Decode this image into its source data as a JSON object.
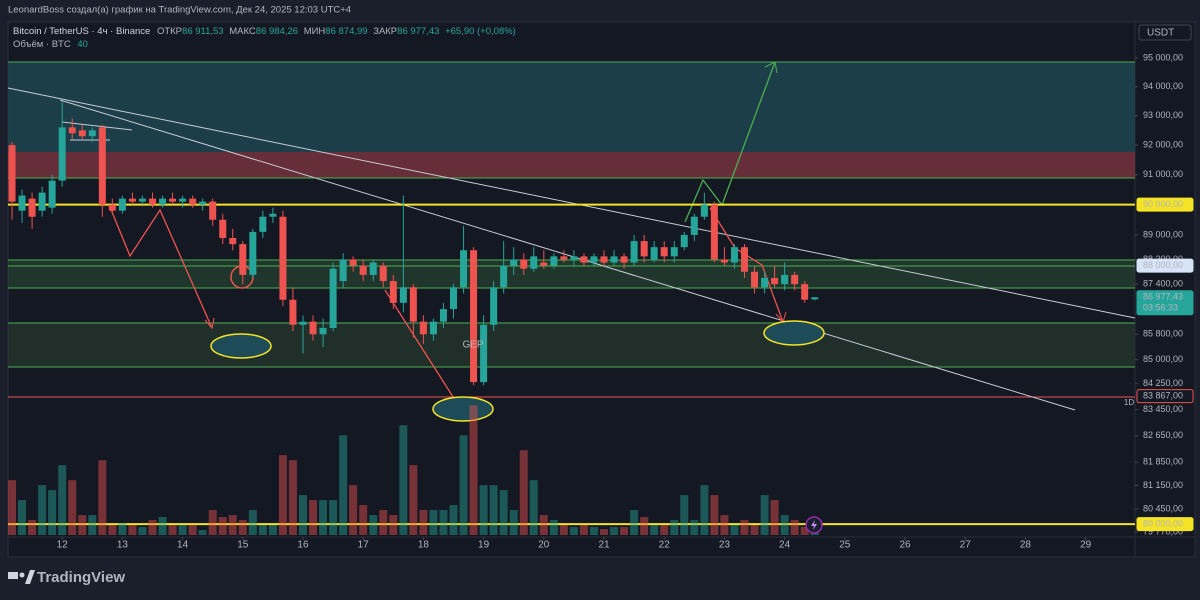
{
  "chart_data": {
    "type": "candlestick",
    "attribution": "LeonardBoss создал(а) график на TradingView.com, Дек 24, 2025 12:03 UTC+4",
    "title": "Bitcoin / TetherUS · 4ч · Binance",
    "ohlc_labels": [
      "ОТКР",
      "МАКС",
      "МИН",
      "ЗАКР"
    ],
    "ohlc_printed": [
      "86 911,53",
      "86 984,26",
      "86 874,99",
      "86 977,43"
    ],
    "change": "+65,90 (+0,08%)",
    "volume_label": "Объём · BTC",
    "volume_length": 40,
    "currency": "USDT",
    "annotations": [
      "GEP",
      "1D"
    ],
    "brand": "TradingView",
    "log": true,
    "up_color": "#26a69a",
    "down_color": "#ef5350",
    "xlim": [
      11.1,
      29.82
    ],
    "xticks": [
      12,
      13,
      14,
      15,
      16,
      17,
      18,
      19,
      20,
      21,
      22,
      23,
      24,
      25,
      26,
      27,
      28,
      29
    ],
    "ylim": [
      79680,
      95280
    ],
    "yticks": [
      {
        "value": 95000,
        "label": "95 000,00"
      },
      {
        "value": 94000,
        "label": "94 000,00"
      },
      {
        "value": 93000,
        "label": "93 000,00"
      },
      {
        "value": 92000,
        "label": "92 000,00"
      },
      {
        "value": 91000,
        "label": "91 000,00"
      },
      {
        "value": 89000,
        "label": "89 000,00"
      },
      {
        "value": 88200,
        "label": "88 200,00"
      },
      {
        "value": 87400,
        "label": "87 400,00"
      },
      {
        "value": 85800,
        "label": "85 800,00"
      },
      {
        "value": 85000,
        "label": "85 000,00"
      },
      {
        "value": 84250,
        "label": "84 250,00"
      },
      {
        "value": 83450,
        "label": "83 450,00"
      },
      {
        "value": 82650,
        "label": "82 650,00"
      },
      {
        "value": 81850,
        "label": "81 850,00"
      },
      {
        "value": 81150,
        "label": "81 150,00"
      },
      {
        "value": 80450,
        "label": "80 450,00"
      },
      {
        "value": 79770,
        "label": "79 770,00"
      }
    ],
    "price_markers": [
      {
        "value": 90000,
        "label": "90 000,00",
        "color": "#f5e326"
      },
      {
        "value": 88000,
        "label": "88 000,00",
        "color": "#d6e4f5"
      },
      {
        "value": 83867,
        "label": "83 867,00",
        "color": "#ef5350"
      },
      {
        "value": 80000,
        "label": "80 000,00",
        "color": "#f5e326"
      },
      {
        "value": 86977.43,
        "label": "86 977,43",
        "countdown": "03:56:33",
        "color": "#26a69a"
      }
    ],
    "vlim": [
      0,
      4000
    ],
    "x": [
      11.167,
      11.333,
      11.5,
      11.667,
      11.833,
      12,
      12.167,
      12.333,
      12.5,
      12.667,
      12.833,
      13,
      13.167,
      13.333,
      13.5,
      13.667,
      13.833,
      14,
      14.167,
      14.333,
      14.5,
      14.667,
      14.833,
      15,
      15.167,
      15.333,
      15.5,
      15.667,
      15.833,
      16,
      16.167,
      16.333,
      16.5,
      16.667,
      16.833,
      17,
      17.167,
      17.333,
      17.5,
      17.667,
      17.833,
      18,
      18.167,
      18.333,
      18.5,
      18.667,
      18.833,
      19,
      19.167,
      19.333,
      19.5,
      19.667,
      19.833,
      20,
      20.167,
      20.333,
      20.5,
      20.667,
      20.833,
      21,
      21.167,
      21.333,
      21.5,
      21.667,
      21.833,
      22,
      22.167,
      22.333,
      22.5,
      22.667,
      22.833,
      23,
      23.167,
      23.333,
      23.5,
      23.667,
      23.833,
      24,
      24.167,
      24.333,
      24.5
    ],
    "open": [
      92000,
      89800,
      90200,
      89800,
      89900,
      90800,
      92600,
      92500,
      92300,
      92600,
      90000,
      89800,
      90200,
      90100,
      90200,
      90000,
      90200,
      90100,
      90200,
      90000,
      90100,
      89500,
      88900,
      88700,
      87700,
      89100,
      89600,
      89600,
      86900,
      86100,
      86200,
      85800,
      86000,
      87500,
      88200,
      88000,
      87700,
      88000,
      87500,
      86800,
      87300,
      86200,
      85800,
      86200,
      86600,
      87300,
      88500,
      84300,
      86100,
      87300,
      88000,
      88200,
      87900,
      88100,
      88000,
      88300,
      88200,
      88300,
      88100,
      88300,
      88100,
      88300,
      88100,
      88800,
      88200,
      88600,
      88300,
      88600,
      89000,
      89600,
      90000,
      88200,
      88100,
      88600,
      87800,
      87300,
      87600,
      87400,
      87700,
      87400,
      86911.53
    ],
    "high": [
      92100,
      90500,
      90400,
      90600,
      91000,
      93500,
      92900,
      92700,
      92600,
      92700,
      90200,
      90300,
      90400,
      90300,
      90400,
      90300,
      90400,
      90300,
      90300,
      90200,
      90200,
      89700,
      89200,
      88800,
      89200,
      89800,
      89900,
      89800,
      87300,
      86400,
      86400,
      86300,
      88100,
      88400,
      88300,
      88200,
      88200,
      88100,
      87700,
      90300,
      87400,
      86400,
      86300,
      86800,
      87400,
      89300,
      88600,
      86400,
      87500,
      88800,
      88600,
      88400,
      88600,
      88500,
      88400,
      88500,
      88500,
      88400,
      88400,
      88500,
      88500,
      88400,
      89000,
      89000,
      88800,
      88800,
      88800,
      89100,
      89700,
      90400,
      90100,
      88600,
      88700,
      88700,
      88000,
      87800,
      88000,
      88100,
      87800,
      87500,
      86984.26
    ],
    "low": [
      89500,
      89400,
      89200,
      89600,
      89700,
      90600,
      92200,
      92200,
      92100,
      89600,
      89700,
      89700,
      90000,
      90000,
      89900,
      89900,
      90000,
      89900,
      89900,
      89800,
      89300,
      88700,
      88500,
      87400,
      87600,
      88900,
      89400,
      86700,
      85900,
      85200,
      85600,
      85400,
      85900,
      87300,
      87800,
      87500,
      87500,
      87300,
      86600,
      86500,
      85700,
      85500,
      85600,
      86000,
      86300,
      87100,
      84200,
      84200,
      85900,
      87100,
      87700,
      87700,
      87800,
      87900,
      87900,
      88100,
      88000,
      88000,
      88000,
      88000,
      88000,
      87900,
      88000,
      88100,
      88100,
      88100,
      88100,
      88500,
      88800,
      89500,
      88100,
      88000,
      87900,
      87600,
      87100,
      87100,
      87300,
      87200,
      87200,
      86800,
      86874.99
    ],
    "close": [
      90100,
      90300,
      89600,
      90400,
      90800,
      92600,
      92400,
      92300,
      92500,
      90000,
      89800,
      90200,
      90100,
      90200,
      90000,
      90200,
      90100,
      90200,
      90000,
      90100,
      89500,
      88900,
      88700,
      87700,
      89100,
      89600,
      89700,
      86900,
      86100,
      86200,
      85800,
      86000,
      87900,
      88200,
      88000,
      87700,
      88100,
      87500,
      86800,
      87300,
      86200,
      85800,
      86200,
      86600,
      87300,
      88500,
      84300,
      86100,
      87300,
      88000,
      88200,
      87900,
      88300,
      88000,
      88300,
      88200,
      88300,
      88100,
      88300,
      88100,
      88300,
      88100,
      88800,
      88300,
      88600,
      88300,
      88600,
      89000,
      89600,
      90000,
      88200,
      88100,
      88600,
      87800,
      87300,
      87600,
      87400,
      87700,
      87400,
      86900,
      86977.43
    ],
    "volume": [
      1650,
      1050,
      450,
      1500,
      1350,
      2100,
      1650,
      600,
      600,
      2250,
      300,
      360,
      300,
      240,
      450,
      540,
      300,
      300,
      300,
      150,
      750,
      540,
      600,
      450,
      750,
      300,
      300,
      2400,
      2250,
      1200,
      1050,
      1050,
      1050,
      3000,
      1500,
      900,
      600,
      750,
      600,
      3300,
      2100,
      750,
      750,
      750,
      900,
      3000,
      3900,
      1500,
      1500,
      1350,
      750,
      2550,
      1650,
      600,
      450,
      300,
      240,
      300,
      240,
      180,
      240,
      240,
      750,
      540,
      300,
      300,
      450,
      1200,
      450,
      1500,
      1200,
      600,
      300,
      450,
      300,
      1200,
      1050,
      600,
      450,
      240,
      120
    ]
  }
}
